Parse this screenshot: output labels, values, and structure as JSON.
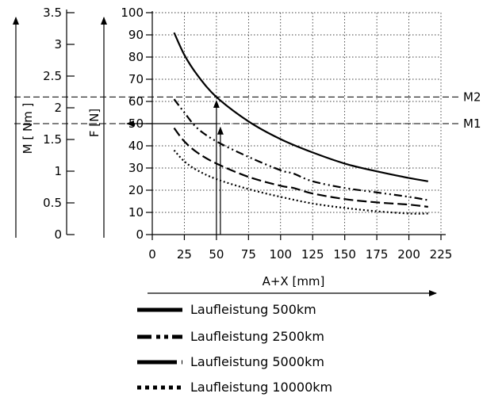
{
  "chart_data": {
    "type": "line",
    "xlabel": "A+X [mm]",
    "x_ticks": [
      "0",
      "25",
      "50",
      "75",
      "100",
      "125",
      "150",
      "175",
      "200",
      "225"
    ],
    "xlim": [
      0,
      225
    ],
    "f_axis": {
      "label": "F [N]",
      "ticks": [
        "0",
        "10",
        "20",
        "30",
        "40",
        "50",
        "60",
        "70",
        "80",
        "90",
        "100"
      ],
      "range": [
        0,
        100
      ]
    },
    "m_axis": {
      "label": "M [ Nm ]",
      "ticks": [
        "0",
        "0.5",
        "1",
        "1.5",
        "2",
        "2.5",
        "3",
        "3.5"
      ],
      "range": [
        0,
        3.5
      ]
    },
    "reference_lines": [
      {
        "label": "M2",
        "f_value": 62
      },
      {
        "label": "M1",
        "f_value": 50
      }
    ],
    "annotation_x": 50,
    "series": [
      {
        "name": "Laufleistung 500km",
        "style": "solid",
        "x": [
          17,
          25,
          35,
          50,
          75,
          100,
          125,
          150,
          175,
          200,
          215
        ],
        "y": [
          91,
          81,
          72,
          62,
          51,
          43,
          37,
          32,
          28.5,
          25.5,
          24
        ]
      },
      {
        "name": "Laufleistung 2500km",
        "style": "dashdotdot",
        "x": [
          17,
          25,
          35,
          50,
          75,
          100,
          110,
          125,
          150,
          175,
          200,
          215
        ],
        "y": [
          61,
          55,
          48,
          42,
          35,
          29,
          27.5,
          24,
          21,
          19,
          17,
          15.5
        ]
      },
      {
        "name": "Laufleistung 5000km",
        "style": "dashed",
        "x": [
          17,
          25,
          35,
          50,
          75,
          100,
          110,
          125,
          150,
          175,
          200,
          215
        ],
        "y": [
          48,
          42,
          37,
          32,
          26,
          22,
          21,
          18.5,
          16,
          14.5,
          13.5,
          12.5
        ]
      },
      {
        "name": "Laufleistung 10000km",
        "style": "dotted",
        "x": [
          17,
          25,
          35,
          50,
          75,
          100,
          125,
          150,
          175,
          200,
          215
        ],
        "y": [
          38,
          33,
          29,
          25,
          20.5,
          17,
          14,
          12,
          10.5,
          9.5,
          9.5
        ]
      }
    ]
  }
}
